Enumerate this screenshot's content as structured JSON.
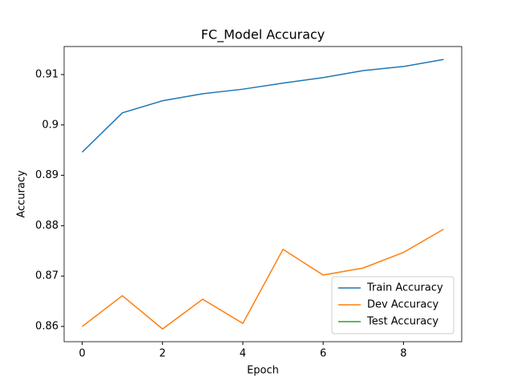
{
  "chart_data": {
    "type": "line",
    "title": "FC_Model Accuracy",
    "xlabel": "Epoch",
    "ylabel": "Accuracy",
    "x": [
      0,
      1,
      2,
      3,
      4,
      5,
      6,
      7,
      8,
      9
    ],
    "series": [
      {
        "name": "Train Accuracy",
        "color": "#1f77b4",
        "values": [
          0.8946,
          0.9024,
          0.9048,
          0.9062,
          0.9071,
          0.9083,
          0.9094,
          0.9108,
          0.9116,
          0.913
        ]
      },
      {
        "name": "Dev Accuracy",
        "color": "#ff7f0e",
        "values": [
          0.86,
          0.8661,
          0.8595,
          0.8654,
          0.8606,
          0.8753,
          0.8702,
          0.8716,
          0.8747,
          0.8793
        ]
      },
      {
        "name": "Test Accuracy",
        "color": "#2ca02c",
        "values": [
          null,
          null,
          null,
          null,
          null,
          null,
          null,
          null,
          null,
          null
        ]
      }
    ],
    "xlim": [
      -0.45,
      9.45
    ],
    "xticks": [
      0,
      2,
      4,
      6,
      8
    ],
    "ylim": [
      0.85697,
      0.91557
    ],
    "yticks": [
      0.86,
      0.87,
      0.88,
      0.89,
      0.9,
      0.91
    ],
    "legend": "lower right"
  }
}
